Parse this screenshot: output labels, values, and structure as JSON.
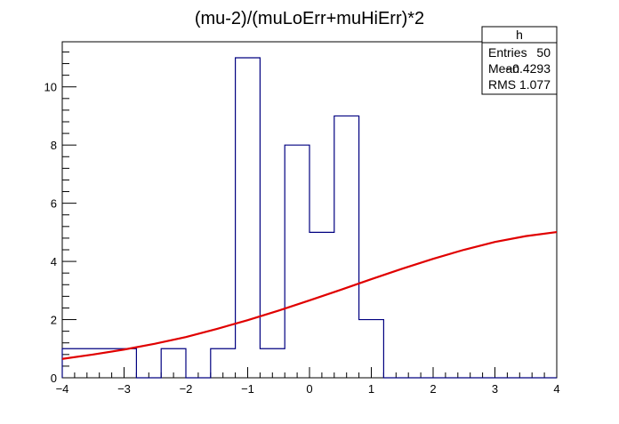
{
  "chart_data": {
    "type": "histogram",
    "title": "(mu-2)/(muLoErr+muHiErr)*2",
    "xlim": [
      -4,
      4
    ],
    "ylim": [
      0,
      11.55
    ],
    "x_ticks": [
      -4,
      -3,
      -2,
      -1,
      0,
      1,
      2,
      3,
      4
    ],
    "x_tick_labels": [
      "−4",
      "−3",
      "−2",
      "−1",
      "0",
      "1",
      "2",
      "3",
      "4"
    ],
    "y_ticks": [
      0,
      2,
      4,
      6,
      8,
      10
    ],
    "y_tick_labels": [
      "0",
      "2",
      "4",
      "6",
      "8",
      "10"
    ],
    "bins": {
      "edges": [
        -4.0,
        -3.6,
        -3.2,
        -2.8,
        -2.4,
        -2.0,
        -1.6,
        -1.2,
        -0.8,
        -0.4,
        0.0,
        0.4,
        0.8,
        1.2,
        1.6,
        2.0,
        2.4,
        2.8,
        3.2,
        3.6,
        4.0
      ],
      "counts": [
        1,
        1,
        1,
        0,
        1,
        0,
        1,
        11,
        1,
        8,
        5,
        9,
        2,
        0,
        0,
        0,
        0,
        0,
        0,
        0
      ]
    },
    "fit_curve": {
      "x": [
        -4,
        -3.5,
        -3,
        -2.5,
        -2,
        -1.5,
        -1,
        -0.5,
        0,
        0.5,
        1,
        1.5,
        2,
        2.5,
        3,
        3.5,
        4
      ],
      "y": [
        0.65,
        0.8,
        0.97,
        1.17,
        1.4,
        1.68,
        1.98,
        2.31,
        2.66,
        3.02,
        3.39,
        3.75,
        4.09,
        4.4,
        4.67,
        4.87,
        5.01
      ]
    },
    "stats_box": {
      "title": "h",
      "rows": [
        {
          "label": "Entries",
          "value": "50"
        },
        {
          "label": "Mean",
          "value": "−0.4293"
        },
        {
          "label": "RMS",
          "value": "1.077"
        }
      ]
    },
    "colors": {
      "histogram": "#000080",
      "fit": "#e00000",
      "axes": "#000000",
      "background": "#ffffff"
    }
  }
}
